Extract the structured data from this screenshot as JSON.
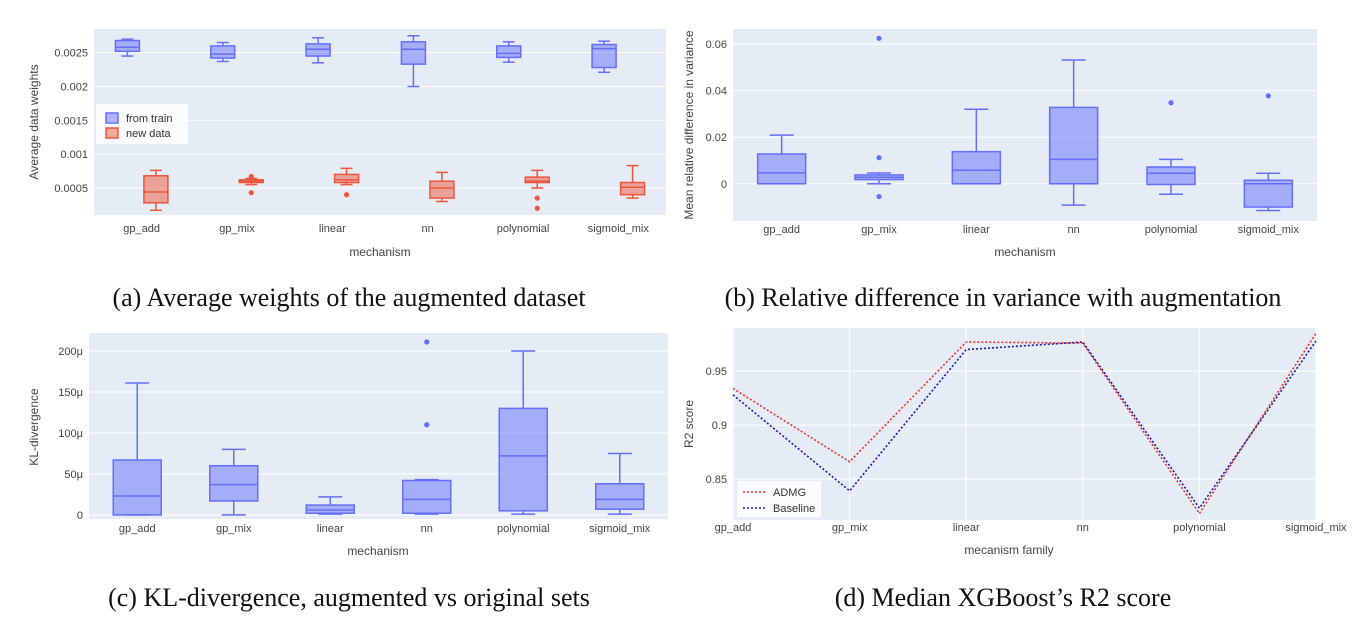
{
  "colors": {
    "plot_bg": "#e5ecf6",
    "grid": "#ffffff",
    "blue": "#636efa",
    "red": "#ef553b",
    "admg": "#e8332b",
    "baseline": "#1a1aa8"
  },
  "chart_data": [
    {
      "id": "a",
      "type": "box",
      "caption": "(a) Average weights of the augmented dataset",
      "xlabel": "mechanism",
      "ylabel": "Average data weights",
      "categories": [
        "gp_add",
        "gp_mix",
        "linear",
        "nn",
        "polynomial",
        "sigmoid_mix"
      ],
      "ylim": [
        0.0001,
        0.00285
      ],
      "yticks": [
        0.0005,
        0.001,
        0.0015,
        0.002,
        0.0025
      ],
      "ytick_labels": [
        "0.0005",
        "0.001",
        "0.0015",
        "0.002",
        "0.0025"
      ],
      "legend_position": "top-left",
      "series": [
        {
          "name": "from train",
          "color": "blue",
          "offset": -0.15,
          "boxes": [
            {
              "min": 0.00245,
              "q1": 0.00252,
              "median": 0.00258,
              "q3": 0.00268,
              "max": 0.0027,
              "outliers": []
            },
            {
              "min": 0.00237,
              "q1": 0.00242,
              "median": 0.00248,
              "q3": 0.0026,
              "max": 0.00265,
              "outliers": []
            },
            {
              "min": 0.00235,
              "q1": 0.00245,
              "median": 0.00255,
              "q3": 0.00263,
              "max": 0.00272,
              "outliers": []
            },
            {
              "min": 0.002,
              "q1": 0.00233,
              "median": 0.00255,
              "q3": 0.00266,
              "max": 0.00275,
              "outliers": []
            },
            {
              "min": 0.00236,
              "q1": 0.00243,
              "median": 0.00249,
              "q3": 0.0026,
              "max": 0.00266,
              "outliers": []
            },
            {
              "min": 0.00221,
              "q1": 0.00228,
              "median": 0.00256,
              "q3": 0.00262,
              "max": 0.00267,
              "outliers": []
            }
          ]
        },
        {
          "name": "new data",
          "color": "red",
          "offset": 0.15,
          "boxes": [
            {
              "min": 0.00017,
              "q1": 0.00028,
              "median": 0.00044,
              "q3": 0.00068,
              "max": 0.00076,
              "outliers": []
            },
            {
              "min": 0.00055,
              "q1": 0.00058,
              "median": 0.0006,
              "q3": 0.00062,
              "max": 0.00064,
              "outliers": [
                0.00043,
                0.00065,
                0.00067
              ]
            },
            {
              "min": 0.00055,
              "q1": 0.00058,
              "median": 0.00062,
              "q3": 0.0007,
              "max": 0.00079,
              "outliers": [
                0.0004
              ]
            },
            {
              "min": 0.0003,
              "q1": 0.00035,
              "median": 0.0005,
              "q3": 0.0006,
              "max": 0.00073,
              "outliers": []
            },
            {
              "min": 0.0005,
              "q1": 0.00058,
              "median": 0.0006,
              "q3": 0.00066,
              "max": 0.00076,
              "outliers": [
                0.00035,
                0.0002
              ]
            },
            {
              "min": 0.00035,
              "q1": 0.0004,
              "median": 0.00051,
              "q3": 0.00058,
              "max": 0.00083,
              "outliers": []
            }
          ]
        }
      ]
    },
    {
      "id": "b",
      "type": "box",
      "caption": "(b) Relative difference in variance with augmentation",
      "xlabel": "mechanism",
      "ylabel": "Mean relative difference in variance",
      "categories": [
        "gp_add",
        "gp_mix",
        "linear",
        "nn",
        "polynomial",
        "sigmoid_mix"
      ],
      "ylim": [
        -0.016,
        0.0665
      ],
      "yticks": [
        0,
        0.02,
        0.04,
        0.06
      ],
      "ytick_labels": [
        "0",
        "0.02",
        "0.04",
        "0.06"
      ],
      "series": [
        {
          "name": "",
          "color": "blue",
          "offset": 0,
          "boxes": [
            {
              "min": 0.0,
              "q1": 0.0,
              "median": 0.0047,
              "q3": 0.0128,
              "max": 0.0209,
              "outliers": []
            },
            {
              "min": 0.0,
              "q1": 0.0018,
              "median": 0.0028,
              "q3": 0.0038,
              "max": 0.0046,
              "outliers": [
                0.0625,
                0.0112,
                -0.0055
              ]
            },
            {
              "min": 0.0,
              "q1": 0.0,
              "median": 0.0058,
              "q3": 0.0138,
              "max": 0.032,
              "outliers": []
            },
            {
              "min": -0.0092,
              "q1": 0.0,
              "median": 0.0105,
              "q3": 0.0328,
              "max": 0.0532,
              "outliers": []
            },
            {
              "min": -0.0045,
              "q1": -0.0003,
              "median": 0.0045,
              "q3": 0.0072,
              "max": 0.0105,
              "outliers": [
                0.0348
              ]
            },
            {
              "min": -0.0115,
              "q1": -0.01,
              "median": 0.0,
              "q3": 0.0015,
              "max": 0.0045,
              "outliers": [
                0.0378
              ]
            }
          ]
        }
      ]
    },
    {
      "id": "c",
      "type": "box",
      "caption": "(c) KL-divergence, augmented vs original sets",
      "xlabel": "mechanism",
      "ylabel": "KL-divergence",
      "categories": [
        "gp_add",
        "gp_mix",
        "linear",
        "nn",
        "polynomial",
        "sigmoid_mix"
      ],
      "ylim": [
        -5,
        222
      ],
      "yticks": [
        0,
        50,
        100,
        150,
        200
      ],
      "ytick_labels": [
        "0",
        "50μ",
        "100μ",
        "150μ",
        "200μ"
      ],
      "series": [
        {
          "name": "",
          "color": "blue",
          "offset": 0,
          "boxes": [
            {
              "min": 0,
              "q1": 0,
              "median": 23,
              "q3": 67,
              "max": 161,
              "outliers": []
            },
            {
              "min": 0,
              "q1": 17,
              "median": 37,
              "q3": 60,
              "max": 80,
              "outliers": []
            },
            {
              "min": 1,
              "q1": 2,
              "median": 6,
              "q3": 12,
              "max": 22,
              "outliers": []
            },
            {
              "min": 1,
              "q1": 2,
              "median": 19,
              "q3": 42,
              "max": 43,
              "outliers": [
                211,
                110
              ]
            },
            {
              "min": 1,
              "q1": 5,
              "median": 72,
              "q3": 130,
              "max": 200,
              "outliers": []
            },
            {
              "min": 1,
              "q1": 7,
              "median": 19,
              "q3": 38,
              "max": 75,
              "outliers": []
            }
          ]
        }
      ]
    },
    {
      "id": "d",
      "type": "line",
      "caption": "(d) Median XGBoost’s R2 score",
      "xlabel": "mecanism family",
      "ylabel": "R2 score",
      "categories": [
        "gp_add",
        "gp_mix",
        "linear",
        "nn",
        "polynomial",
        "sigmoid_mix"
      ],
      "ylim": [
        0.812,
        0.99
      ],
      "yticks": [
        0.85,
        0.9,
        0.95
      ],
      "ytick_labels": [
        "0.85",
        "0.9",
        "0.95"
      ],
      "legend_position": "bottom-left",
      "series": [
        {
          "name": "ADMG",
          "color": "admg",
          "values": [
            0.934,
            0.866,
            0.977,
            0.976,
            0.818,
            0.985
          ]
        },
        {
          "name": "Baseline",
          "color": "baseline",
          "values": [
            0.928,
            0.839,
            0.97,
            0.977,
            0.823,
            0.978
          ]
        }
      ]
    }
  ]
}
